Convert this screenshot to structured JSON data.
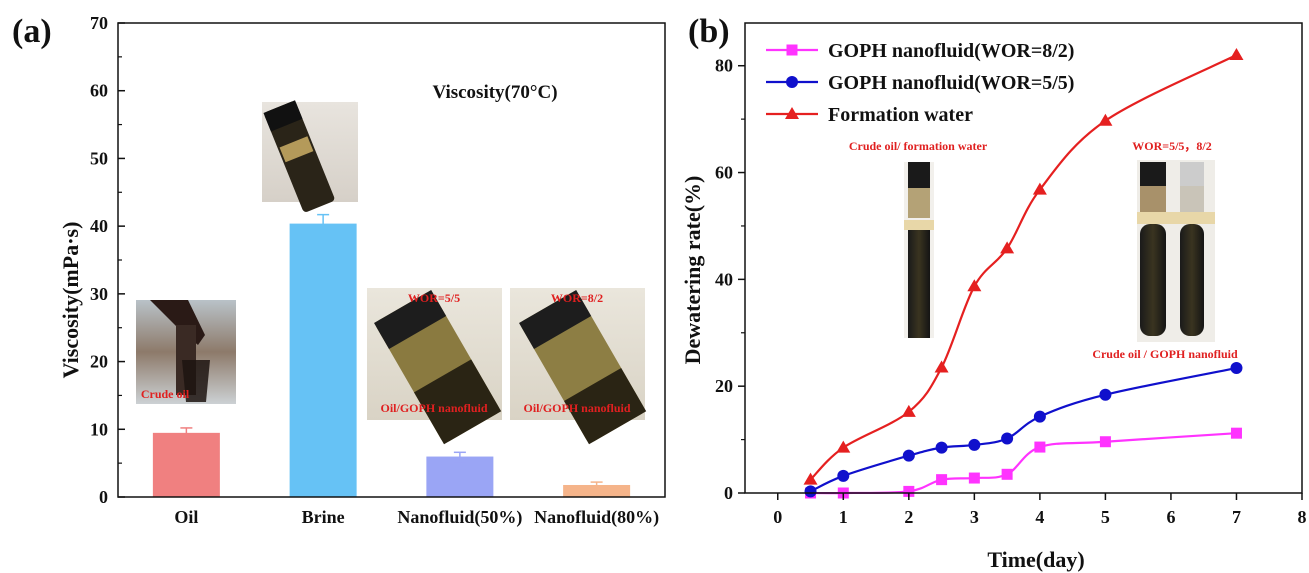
{
  "chart_data": [
    {
      "type": "bar",
      "panel_label": "(a)",
      "ylabel": "Viscosity(mPa·s)",
      "annotation": "Viscosity(70°C)",
      "categories": [
        "Oil",
        "Brine",
        "Nanofluid(50%)",
        "Nanofluid(80%)"
      ],
      "values": [
        9.4,
        40.3,
        5.9,
        1.7
      ],
      "errors": [
        0.8,
        1.4,
        0.7,
        0.5
      ],
      "colors": [
        "#f08080",
        "#66c2f5",
        "#9aa5f5",
        "#f5b48a"
      ],
      "ylim": [
        0,
        70
      ],
      "yticks": [
        0,
        10,
        20,
        30,
        40,
        50,
        60,
        70
      ],
      "photo_captions": {
        "oil_photo": "Crude oil",
        "wor55_top": "WOR=5/5",
        "wor55_bottom": "Oil/GOPH nanofluid",
        "wor82_top": "WOR=8/2",
        "wor82_bottom": "Oil/GOPH nanofluid"
      }
    },
    {
      "type": "line",
      "panel_label": "(b)",
      "xlabel": "Time(day)",
      "ylabel": "Dewatering rate(%)",
      "xlim": [
        -0.5,
        8
      ],
      "ylim": [
        0,
        88
      ],
      "xticks": [
        0,
        1,
        2,
        3,
        4,
        5,
        6,
        7,
        8
      ],
      "yticks": [
        0,
        20,
        40,
        60,
        80
      ],
      "series": [
        {
          "name": "GOPH nanofluid(WOR=8/2)",
          "color": "#ff33ff",
          "marker": "square",
          "x": [
            0.5,
            1,
            2,
            2.5,
            3,
            3.5,
            4,
            5,
            7
          ],
          "y": [
            0,
            0,
            0.3,
            2.5,
            2.8,
            3.5,
            8.6,
            9.6,
            11.2
          ]
        },
        {
          "name": "GOPH nanofluid(WOR=5/5)",
          "color": "#1010cc",
          "marker": "circle",
          "x": [
            0.5,
            1,
            2,
            2.5,
            3,
            3.5,
            4,
            5,
            7
          ],
          "y": [
            0.3,
            3.2,
            7.0,
            8.5,
            9.0,
            10.2,
            14.3,
            18.4,
            23.4
          ]
        },
        {
          "name": "Formation water",
          "color": "#e52020",
          "marker": "triangle",
          "x": [
            0.5,
            1,
            2,
            2.5,
            3,
            3.5,
            4,
            5,
            7
          ],
          "y": [
            2.5,
            8.5,
            15.2,
            23.5,
            38.7,
            45.8,
            56.8,
            69.7,
            82.0
          ]
        }
      ],
      "photo_captions": {
        "left_photo": "Crude oil/ formation water",
        "right_photo_top": "WOR=5/5，8/2",
        "right_photo_bottom": "Crude oil / GOPH nanofluid"
      }
    }
  ]
}
